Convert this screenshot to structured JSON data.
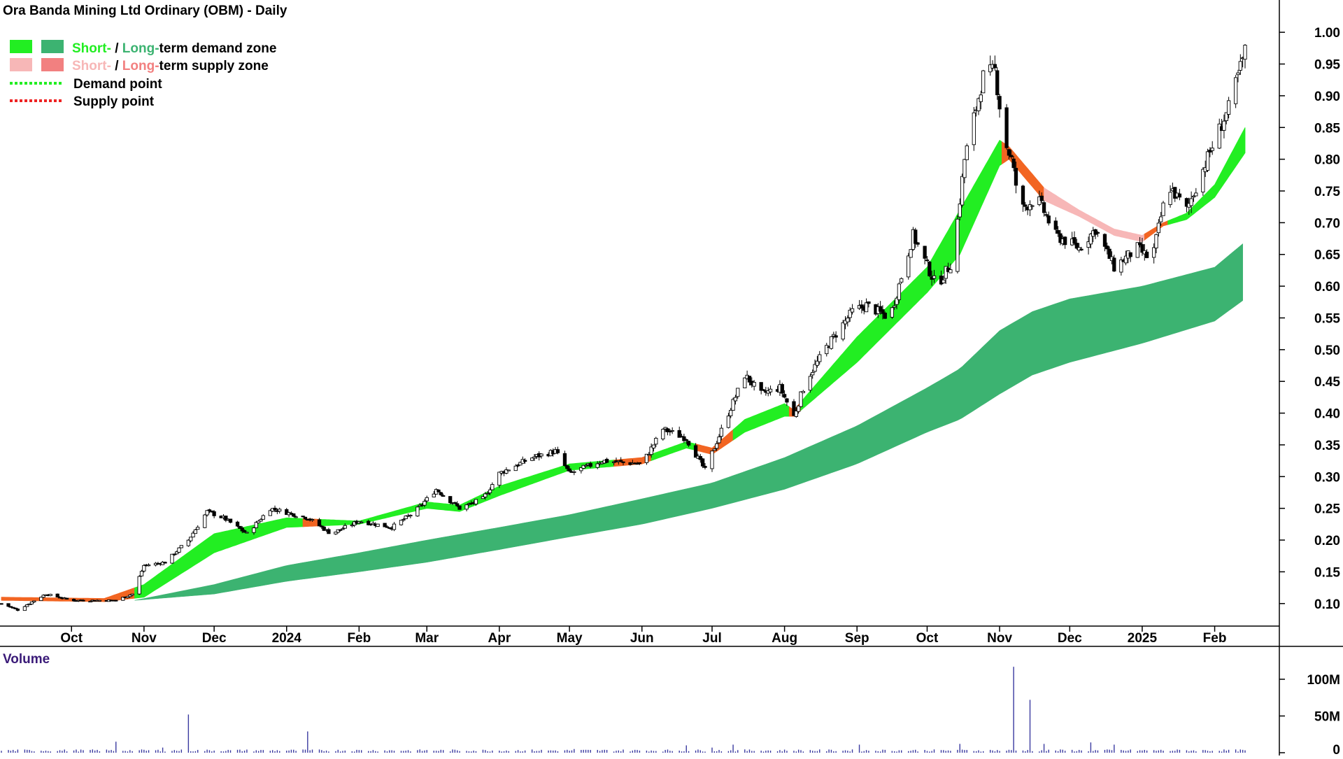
{
  "title": "Ora Banda Mining Ltd Ordinary (OBM) - Daily",
  "legend": {
    "demand_zone": {
      "short": "Short-",
      "sep": " / ",
      "long": "Long-",
      "rest": "term demand zone"
    },
    "supply_zone": {
      "short": "Short-",
      "sep": " / ",
      "long": "Long-",
      "rest": "term supply zone"
    },
    "demand_point": "Demand point",
    "supply_point": "Supply point"
  },
  "colors": {
    "short_demand": "#22ee22",
    "long_demand": "#3cb371",
    "short_supply": "#f7b7b7",
    "long_supply": "#f28080",
    "transition": "#f26522",
    "candle": "#000000",
    "volume": "#3a3aa0",
    "volume_label": "#3a1a78",
    "demand_point": "#22ee22",
    "supply_point": "#ee2222"
  },
  "volume_panel": {
    "label": "Volume",
    "ticks": [
      "100M",
      "50M",
      "0"
    ]
  },
  "chart_data": {
    "type": "candlestick",
    "y_axis": {
      "min": 0.07,
      "max": 1.02,
      "ticks": [
        "1.00",
        "0.95",
        "0.90",
        "0.85",
        "0.80",
        "0.75",
        "0.70",
        "0.65",
        "0.60",
        "0.55",
        "0.50",
        "0.45",
        "0.40",
        "0.35",
        "0.30",
        "0.25",
        "0.20",
        "0.15",
        "0.10"
      ]
    },
    "x_axis": {
      "start": "2023-09-01",
      "end": "2025-02-14",
      "labels": [
        {
          "date": "2023-10-01",
          "label": "Oct"
        },
        {
          "date": "2023-11-01",
          "label": "Nov"
        },
        {
          "date": "2023-12-01",
          "label": "Dec"
        },
        {
          "date": "2024-01-01",
          "label": "2024"
        },
        {
          "date": "2024-02-01",
          "label": "Feb"
        },
        {
          "date": "2024-03-01",
          "label": "Mar"
        },
        {
          "date": "2024-04-01",
          "label": "Apr"
        },
        {
          "date": "2024-05-01",
          "label": "May"
        },
        {
          "date": "2024-06-01",
          "label": "Jun"
        },
        {
          "date": "2024-07-01",
          "label": "Jul"
        },
        {
          "date": "2024-08-01",
          "label": "Aug"
        },
        {
          "date": "2024-09-01",
          "label": "Sep"
        },
        {
          "date": "2024-10-01",
          "label": "Oct"
        },
        {
          "date": "2024-11-01",
          "label": "Nov"
        },
        {
          "date": "2024-12-01",
          "label": "Dec"
        },
        {
          "date": "2025-01-01",
          "label": "2025"
        },
        {
          "date": "2025-02-01",
          "label": "Feb"
        }
      ]
    },
    "price_path": [
      {
        "date": "2023-09-01",
        "close": 0.1
      },
      {
        "date": "2023-09-08",
        "close": 0.09
      },
      {
        "date": "2023-09-20",
        "close": 0.115
      },
      {
        "date": "2023-10-01",
        "close": 0.105
      },
      {
        "date": "2023-10-20",
        "close": 0.105
      },
      {
        "date": "2023-10-27",
        "close": 0.115
      },
      {
        "date": "2023-11-01",
        "close": 0.16
      },
      {
        "date": "2023-11-10",
        "close": 0.165
      },
      {
        "date": "2023-11-20",
        "close": 0.2
      },
      {
        "date": "2023-11-28",
        "close": 0.245
      },
      {
        "date": "2023-12-05",
        "close": 0.235
      },
      {
        "date": "2023-12-15",
        "close": 0.21
      },
      {
        "date": "2023-12-25",
        "close": 0.25
      },
      {
        "date": "2024-01-10",
        "close": 0.235
      },
      {
        "date": "2024-01-20",
        "close": 0.21
      },
      {
        "date": "2024-02-01",
        "close": 0.23
      },
      {
        "date": "2024-02-15",
        "close": 0.22
      },
      {
        "date": "2024-02-25",
        "close": 0.245
      },
      {
        "date": "2024-03-05",
        "close": 0.28
      },
      {
        "date": "2024-03-15",
        "close": 0.25
      },
      {
        "date": "2024-03-25",
        "close": 0.265
      },
      {
        "date": "2024-04-01",
        "close": 0.305
      },
      {
        "date": "2024-04-15",
        "close": 0.33
      },
      {
        "date": "2024-04-25",
        "close": 0.34
      },
      {
        "date": "2024-05-01",
        "close": 0.305
      },
      {
        "date": "2024-05-15",
        "close": 0.325
      },
      {
        "date": "2024-06-01",
        "close": 0.32
      },
      {
        "date": "2024-06-10",
        "close": 0.375
      },
      {
        "date": "2024-06-20",
        "close": 0.36
      },
      {
        "date": "2024-06-28",
        "close": 0.31
      },
      {
        "date": "2024-07-08",
        "close": 0.4
      },
      {
        "date": "2024-07-15",
        "close": 0.46
      },
      {
        "date": "2024-07-22",
        "close": 0.43
      },
      {
        "date": "2024-07-30",
        "close": 0.44
      },
      {
        "date": "2024-08-05",
        "close": 0.395
      },
      {
        "date": "2024-08-10",
        "close": 0.45
      },
      {
        "date": "2024-08-20",
        "close": 0.51
      },
      {
        "date": "2024-08-30",
        "close": 0.56
      },
      {
        "date": "2024-09-05",
        "close": 0.57
      },
      {
        "date": "2024-09-15",
        "close": 0.55
      },
      {
        "date": "2024-09-25",
        "close": 0.68
      },
      {
        "date": "2024-10-05",
        "close": 0.6
      },
      {
        "date": "2024-10-12",
        "close": 0.64
      },
      {
        "date": "2024-10-17",
        "close": 0.8
      },
      {
        "date": "2024-10-25",
        "close": 0.93
      },
      {
        "date": "2024-10-30",
        "close": 0.94
      },
      {
        "date": "2024-11-03",
        "close": 0.83
      },
      {
        "date": "2024-11-06",
        "close": 0.8
      },
      {
        "date": "2024-11-10",
        "close": 0.72
      },
      {
        "date": "2024-11-17",
        "close": 0.74
      },
      {
        "date": "2024-11-25",
        "close": 0.68
      },
      {
        "date": "2024-12-05",
        "close": 0.66
      },
      {
        "date": "2024-12-12",
        "close": 0.69
      },
      {
        "date": "2024-12-20",
        "close": 0.63
      },
      {
        "date": "2024-12-30",
        "close": 0.66
      },
      {
        "date": "2025-01-05",
        "close": 0.64
      },
      {
        "date": "2025-01-12",
        "close": 0.76
      },
      {
        "date": "2025-01-20",
        "close": 0.72
      },
      {
        "date": "2025-02-01",
        "close": 0.83
      },
      {
        "date": "2025-02-07",
        "close": 0.88
      },
      {
        "date": "2025-02-14",
        "close": 0.97
      }
    ],
    "short_term_zone": [
      {
        "date": "2023-09-01",
        "upper": 0.11,
        "lower": 0.105
      },
      {
        "date": "2023-10-15",
        "upper": 0.108,
        "lower": 0.103
      },
      {
        "date": "2023-11-01",
        "upper": 0.13,
        "lower": 0.11
      },
      {
        "date": "2023-12-01",
        "upper": 0.21,
        "lower": 0.18
      },
      {
        "date": "2024-01-01",
        "upper": 0.235,
        "lower": 0.22
      },
      {
        "date": "2024-02-01",
        "upper": 0.23,
        "lower": 0.225
      },
      {
        "date": "2024-03-01",
        "upper": 0.26,
        "lower": 0.25
      },
      {
        "date": "2024-03-15",
        "upper": 0.255,
        "lower": 0.245
      },
      {
        "date": "2024-04-01",
        "upper": 0.285,
        "lower": 0.27
      },
      {
        "date": "2024-05-01",
        "upper": 0.32,
        "lower": 0.31
      },
      {
        "date": "2024-06-01",
        "upper": 0.33,
        "lower": 0.32
      },
      {
        "date": "2024-06-20",
        "upper": 0.355,
        "lower": 0.345
      },
      {
        "date": "2024-07-01",
        "upper": 0.345,
        "lower": 0.335
      },
      {
        "date": "2024-07-15",
        "upper": 0.39,
        "lower": 0.37
      },
      {
        "date": "2024-08-01",
        "upper": 0.415,
        "lower": 0.395
      },
      {
        "date": "2024-08-05",
        "upper": 0.405,
        "lower": 0.395
      },
      {
        "date": "2024-09-01",
        "upper": 0.52,
        "lower": 0.48
      },
      {
        "date": "2024-10-01",
        "upper": 0.63,
        "lower": 0.59
      },
      {
        "date": "2024-10-15",
        "upper": 0.72,
        "lower": 0.65
      },
      {
        "date": "2024-11-01",
        "upper": 0.83,
        "lower": 0.79
      },
      {
        "date": "2024-11-05",
        "upper": 0.82,
        "lower": 0.8
      },
      {
        "date": "2024-11-20",
        "upper": 0.755,
        "lower": 0.735
      },
      {
        "date": "2024-12-05",
        "upper": 0.72,
        "lower": 0.71
      },
      {
        "date": "2024-12-20",
        "upper": 0.69,
        "lower": 0.68
      },
      {
        "date": "2025-01-01",
        "upper": 0.68,
        "lower": 0.67
      },
      {
        "date": "2025-01-10",
        "upper": 0.7,
        "lower": 0.695
      },
      {
        "date": "2025-01-20",
        "upper": 0.715,
        "lower": 0.705
      },
      {
        "date": "2025-02-01",
        "upper": 0.76,
        "lower": 0.74
      },
      {
        "date": "2025-02-14",
        "upper": 0.85,
        "lower": 0.81
      }
    ],
    "short_term_segments": [
      {
        "from": "2023-09-01",
        "to": "2023-10-28",
        "zone": "transition"
      },
      {
        "from": "2023-10-28",
        "to": "2024-01-08",
        "zone": "demand"
      },
      {
        "from": "2024-01-08",
        "to": "2024-01-15",
        "zone": "transition"
      },
      {
        "from": "2024-01-15",
        "to": "2024-05-20",
        "zone": "demand"
      },
      {
        "from": "2024-05-20",
        "to": "2024-06-05",
        "zone": "transition"
      },
      {
        "from": "2024-06-05",
        "to": "2024-06-24",
        "zone": "demand"
      },
      {
        "from": "2024-06-24",
        "to": "2024-07-10",
        "zone": "transition"
      },
      {
        "from": "2024-07-10",
        "to": "2024-08-03",
        "zone": "demand"
      },
      {
        "from": "2024-08-03",
        "to": "2024-08-08",
        "zone": "transition"
      },
      {
        "from": "2024-08-08",
        "to": "2024-11-02",
        "zone": "demand"
      },
      {
        "from": "2024-11-02",
        "to": "2024-11-20",
        "zone": "transition"
      },
      {
        "from": "2024-11-20",
        "to": "2025-01-02",
        "zone": "supply"
      },
      {
        "from": "2025-01-02",
        "to": "2025-01-12",
        "zone": "transition"
      },
      {
        "from": "2025-01-12",
        "to": "2025-02-14",
        "zone": "demand"
      }
    ],
    "long_term_zone": [
      {
        "date": "2023-10-28",
        "upper": 0.105,
        "lower": 0.105
      },
      {
        "date": "2023-12-01",
        "upper": 0.13,
        "lower": 0.115
      },
      {
        "date": "2024-01-01",
        "upper": 0.16,
        "lower": 0.135
      },
      {
        "date": "2024-02-01",
        "upper": 0.18,
        "lower": 0.15
      },
      {
        "date": "2024-03-01",
        "upper": 0.2,
        "lower": 0.165
      },
      {
        "date": "2024-04-01",
        "upper": 0.22,
        "lower": 0.185
      },
      {
        "date": "2024-05-01",
        "upper": 0.24,
        "lower": 0.205
      },
      {
        "date": "2024-06-01",
        "upper": 0.265,
        "lower": 0.225
      },
      {
        "date": "2024-07-01",
        "upper": 0.29,
        "lower": 0.25
      },
      {
        "date": "2024-08-01",
        "upper": 0.33,
        "lower": 0.28
      },
      {
        "date": "2024-09-01",
        "upper": 0.38,
        "lower": 0.32
      },
      {
        "date": "2024-10-01",
        "upper": 0.44,
        "lower": 0.37
      },
      {
        "date": "2024-10-15",
        "upper": 0.47,
        "lower": 0.39
      },
      {
        "date": "2024-11-01",
        "upper": 0.53,
        "lower": 0.43
      },
      {
        "date": "2024-11-15",
        "upper": 0.56,
        "lower": 0.46
      },
      {
        "date": "2024-12-01",
        "upper": 0.58,
        "lower": 0.48
      },
      {
        "date": "2025-01-01",
        "upper": 0.6,
        "lower": 0.51
      },
      {
        "date": "2025-02-01",
        "upper": 0.63,
        "lower": 0.545
      },
      {
        "date": "2025-02-14",
        "upper": 0.67,
        "lower": 0.58
      }
    ],
    "volume": {
      "unit": "M",
      "max": 120,
      "baseline": 3,
      "spikes": [
        {
          "date": "2023-10-20",
          "value": 15
        },
        {
          "date": "2023-10-21",
          "value": 10
        },
        {
          "date": "2023-11-09",
          "value": 7
        },
        {
          "date": "2023-11-20",
          "value": 52
        },
        {
          "date": "2024-01-10",
          "value": 29
        },
        {
          "date": "2024-05-03",
          "value": 5
        },
        {
          "date": "2024-06-20",
          "value": 10
        },
        {
          "date": "2024-07-01",
          "value": 7
        },
        {
          "date": "2024-07-10",
          "value": 11
        },
        {
          "date": "2024-09-02",
          "value": 11
        },
        {
          "date": "2024-10-15",
          "value": 12
        },
        {
          "date": "2024-10-20",
          "value": 9
        },
        {
          "date": "2024-11-07",
          "value": 117
        },
        {
          "date": "2024-11-14",
          "value": 72
        },
        {
          "date": "2024-11-20",
          "value": 12
        },
        {
          "date": "2024-12-10",
          "value": 14
        },
        {
          "date": "2024-12-20",
          "value": 11
        }
      ]
    }
  }
}
